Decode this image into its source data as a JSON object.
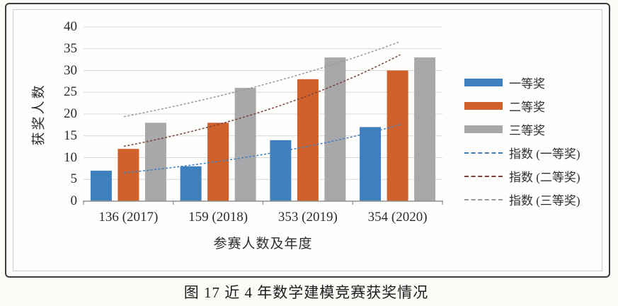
{
  "caption": "图 17  近 4 年数学建模竞赛获奖情况",
  "chart_data": {
    "type": "bar",
    "title": "",
    "xlabel": "参赛人数及年度",
    "ylabel": "获奖人数",
    "categories": [
      "136 (2017)",
      "159 (2018)",
      "353 (2019)",
      "354 (2020)"
    ],
    "series": [
      {
        "key": "first-prize",
        "name": "一等奖",
        "color": "#3E80BE",
        "values": [
          7,
          8,
          14,
          17
        ]
      },
      {
        "key": "second-prize",
        "name": "二等奖",
        "color": "#D0602C",
        "values": [
          12,
          18,
          28,
          30
        ]
      },
      {
        "key": "third-prize",
        "name": "三等奖",
        "color": "#A8A8AA",
        "values": [
          18,
          26,
          33,
          33
        ]
      }
    ],
    "trendlines": [
      {
        "key": "first-prize",
        "name": "指数 (一等奖)",
        "color": "#3E80BE",
        "fitted_values": [
          6.6,
          9.1,
          12.6,
          17.4
        ]
      },
      {
        "key": "second-prize",
        "name": "指数 (二等奖)",
        "color": "#7A4238",
        "fitted_values": [
          12.8,
          17.6,
          24.2,
          33.3
        ]
      },
      {
        "key": "third-prize",
        "name": "指数 (三等奖)",
        "color": "#98989B",
        "fitted_values": [
          19.6,
          24.1,
          29.6,
          36.4
        ]
      }
    ],
    "ylim": [
      0,
      40
    ],
    "ytick_step": 5,
    "yticks": [
      0,
      5,
      10,
      15,
      20,
      25,
      30,
      35,
      40
    ],
    "grid": true,
    "legend_position": "right",
    "grid_color": "#d8d8d6",
    "axis_color": "#8f8f8f"
  }
}
